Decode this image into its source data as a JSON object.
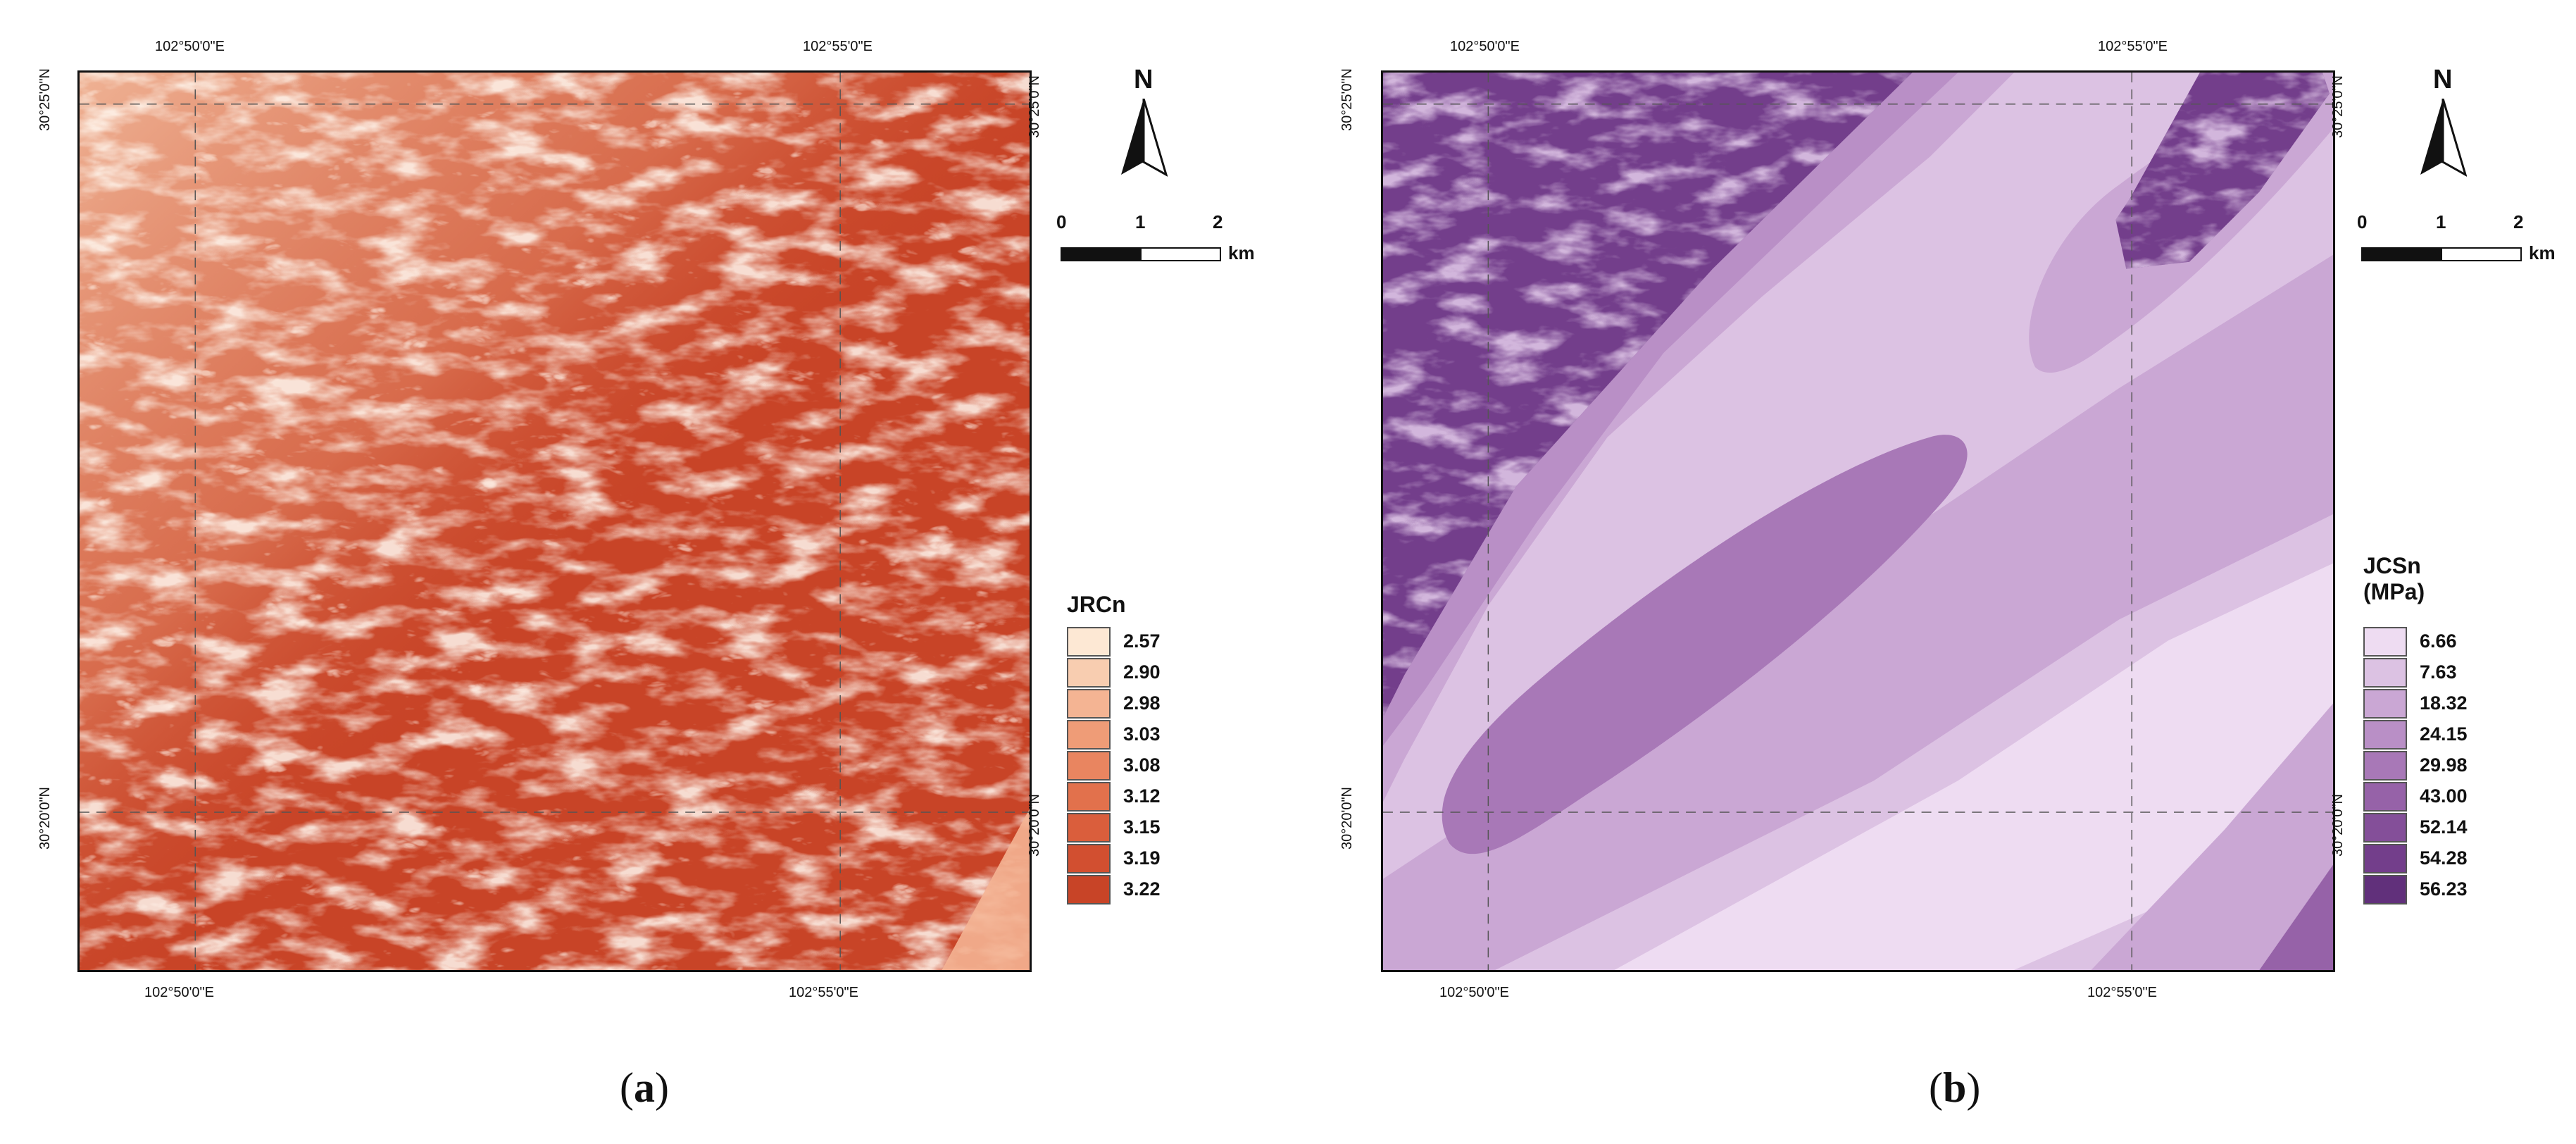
{
  "panels": [
    {
      "label_prefix": "(",
      "label_letter": "a",
      "label_suffix": ")",
      "legend_title": "JRCn",
      "legend_unit": "",
      "legend_items": [
        {
          "value": "2.57",
          "color": "#fde8d4"
        },
        {
          "value": "2.90",
          "color": "#f8cdb0"
        },
        {
          "value": "2.98",
          "color": "#f4b493"
        },
        {
          "value": "3.03",
          "color": "#ef9c77"
        },
        {
          "value": "3.08",
          "color": "#e98560"
        },
        {
          "value": "3.12",
          "color": "#e2714c"
        },
        {
          "value": "3.15",
          "color": "#da5e3c"
        },
        {
          "value": "3.19",
          "color": "#d24f30"
        },
        {
          "value": "3.22",
          "color": "#c84427"
        }
      ],
      "coords": {
        "top_left": "102°50'0\"E",
        "top_right": "102°55'0\"E",
        "bottom_left": "102°50'0\"E",
        "bottom_right": "102°55'0\"E",
        "left_top": "30°25'0\"N",
        "left_bottom": "30°20'0\"N",
        "right_top": "30°25'0\"N",
        "right_bottom": "30°20'0\"N"
      },
      "north": "N",
      "scale": {
        "ticks": [
          "0",
          "1",
          "2"
        ],
        "unit": "km"
      }
    },
    {
      "label_prefix": "(",
      "label_letter": "b",
      "label_suffix": ")",
      "legend_title": "JCSn",
      "legend_unit": "(MPa)",
      "legend_items": [
        {
          "value": "6.66",
          "color": "#eedcf2"
        },
        {
          "value": "7.63",
          "color": "#dcc2e3"
        },
        {
          "value": "18.32",
          "color": "#caa7d4"
        },
        {
          "value": "24.15",
          "color": "#b98fc6"
        },
        {
          "value": "29.98",
          "color": "#a878b7"
        },
        {
          "value": "43.00",
          "color": "#9662a8"
        },
        {
          "value": "52.14",
          "color": "#844f99"
        },
        {
          "value": "54.28",
          "color": "#733e8b"
        },
        {
          "value": "56.23",
          "color": "#61307b"
        }
      ],
      "coords": {
        "top_left": "102°50'0\"E",
        "top_right": "102°55'0\"E",
        "bottom_left": "102°50'0\"E",
        "bottom_right": "102°55'0\"E",
        "left_top": "30°25'0\"N",
        "left_bottom": "30°20'0\"N",
        "right_top": "30°25'0\"N",
        "right_bottom": "30°20'0\"N"
      },
      "north": "N",
      "scale": {
        "ticks": [
          "0",
          "1",
          "2"
        ],
        "unit": "km"
      }
    }
  ]
}
